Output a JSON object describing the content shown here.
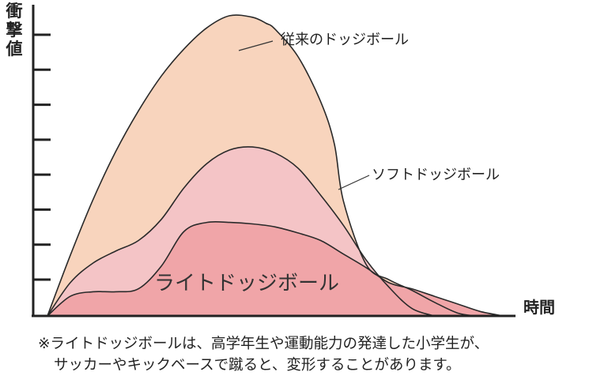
{
  "chart_data": {
    "type": "area",
    "title": "",
    "ylabel": "衝撃値",
    "xlabel": "時間",
    "x_range": [
      0,
      100
    ],
    "ylim": [
      0,
      10
    ],
    "ytick_count": 8,
    "grid": false,
    "series": [
      {
        "name": "従来のドッジボール",
        "label": "従来のドッジボール",
        "color": "#f8d4bd",
        "x": [
          0,
          5,
          10,
          15,
          20,
          25,
          30,
          35,
          40,
          45,
          48,
          50,
          55,
          60,
          63,
          65,
          70,
          75,
          80,
          85,
          90,
          94
        ],
        "values": [
          0,
          2.0,
          3.85,
          5.45,
          6.8,
          7.95,
          8.85,
          9.55,
          9.95,
          9.9,
          9.7,
          9.5,
          8.6,
          7.1,
          5.7,
          3.8,
          1.7,
          1.2,
          0.85,
          0.45,
          0.1,
          0
        ]
      },
      {
        "name": "ソフトドッジボール",
        "label": "ソフトドッジボール",
        "color": "#f4c4c6",
        "x": [
          0,
          5,
          10,
          15,
          20,
          25,
          30,
          35,
          40,
          45,
          50,
          55,
          60,
          65,
          70,
          75,
          80,
          85
        ],
        "values": [
          0,
          1.1,
          1.75,
          2.15,
          2.5,
          3.2,
          4.25,
          5.05,
          5.5,
          5.6,
          5.4,
          4.9,
          4.0,
          3.0,
          1.85,
          0.95,
          0.25,
          0
        ]
      },
      {
        "name": "ライトドッジボール",
        "label": "ライトドッジボール",
        "color": "#f0a5a8",
        "x": [
          0,
          5,
          10,
          15,
          20,
          25,
          30,
          35,
          40,
          45,
          50,
          55,
          60,
          65,
          70,
          75,
          80,
          85,
          90,
          95,
          100
        ],
        "values": [
          0,
          0.65,
          0.8,
          0.8,
          0.9,
          1.65,
          2.8,
          3.1,
          3.1,
          3.05,
          2.95,
          2.75,
          2.5,
          2.05,
          1.6,
          1.1,
          0.9,
          0.65,
          0.4,
          0.15,
          0
        ]
      }
    ]
  },
  "note": {
    "line1": "※ライトドッジボールは、高学年生や運動能力の発達した小学生が、",
    "line2": "サッカーやキックベースで蹴ると、変形することがあります。"
  }
}
